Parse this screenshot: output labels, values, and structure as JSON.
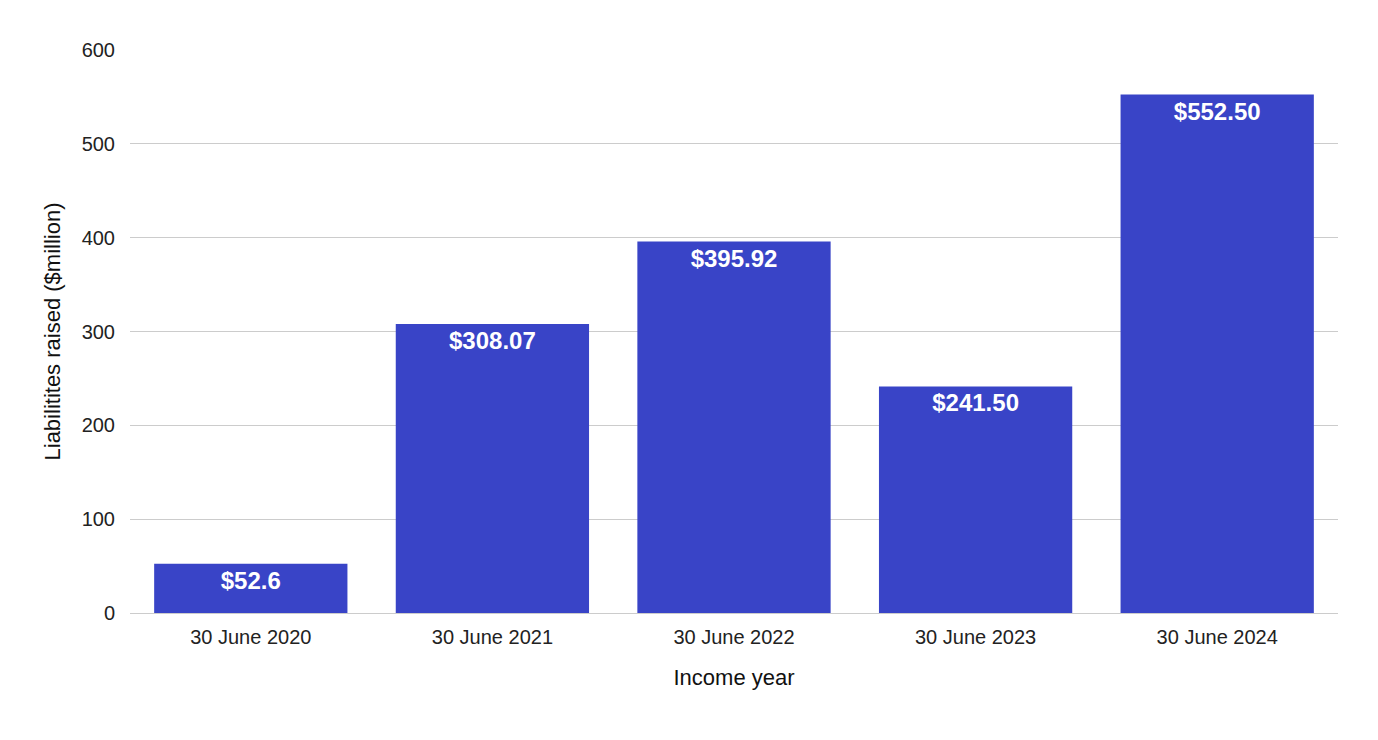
{
  "chart_data": {
    "type": "bar",
    "x_label": "Income year",
    "y_label": "Liabilitites raised ($million)",
    "categories": [
      "30 June 2020",
      "30 June 2021",
      "30 June 2022",
      "30 June 2023",
      "30 June 2024"
    ],
    "values": [
      52.6,
      308.07,
      395.92,
      241.5,
      552.5
    ],
    "value_labels": [
      "$52.6",
      "$308.07",
      "$395.92",
      "$241.50",
      "$552.50"
    ],
    "color": "#3944c7",
    "ylim": [
      0,
      600
    ],
    "yticks": [
      0,
      100,
      200,
      300,
      400,
      500,
      600
    ],
    "grid": true,
    "data_labels": true
  }
}
